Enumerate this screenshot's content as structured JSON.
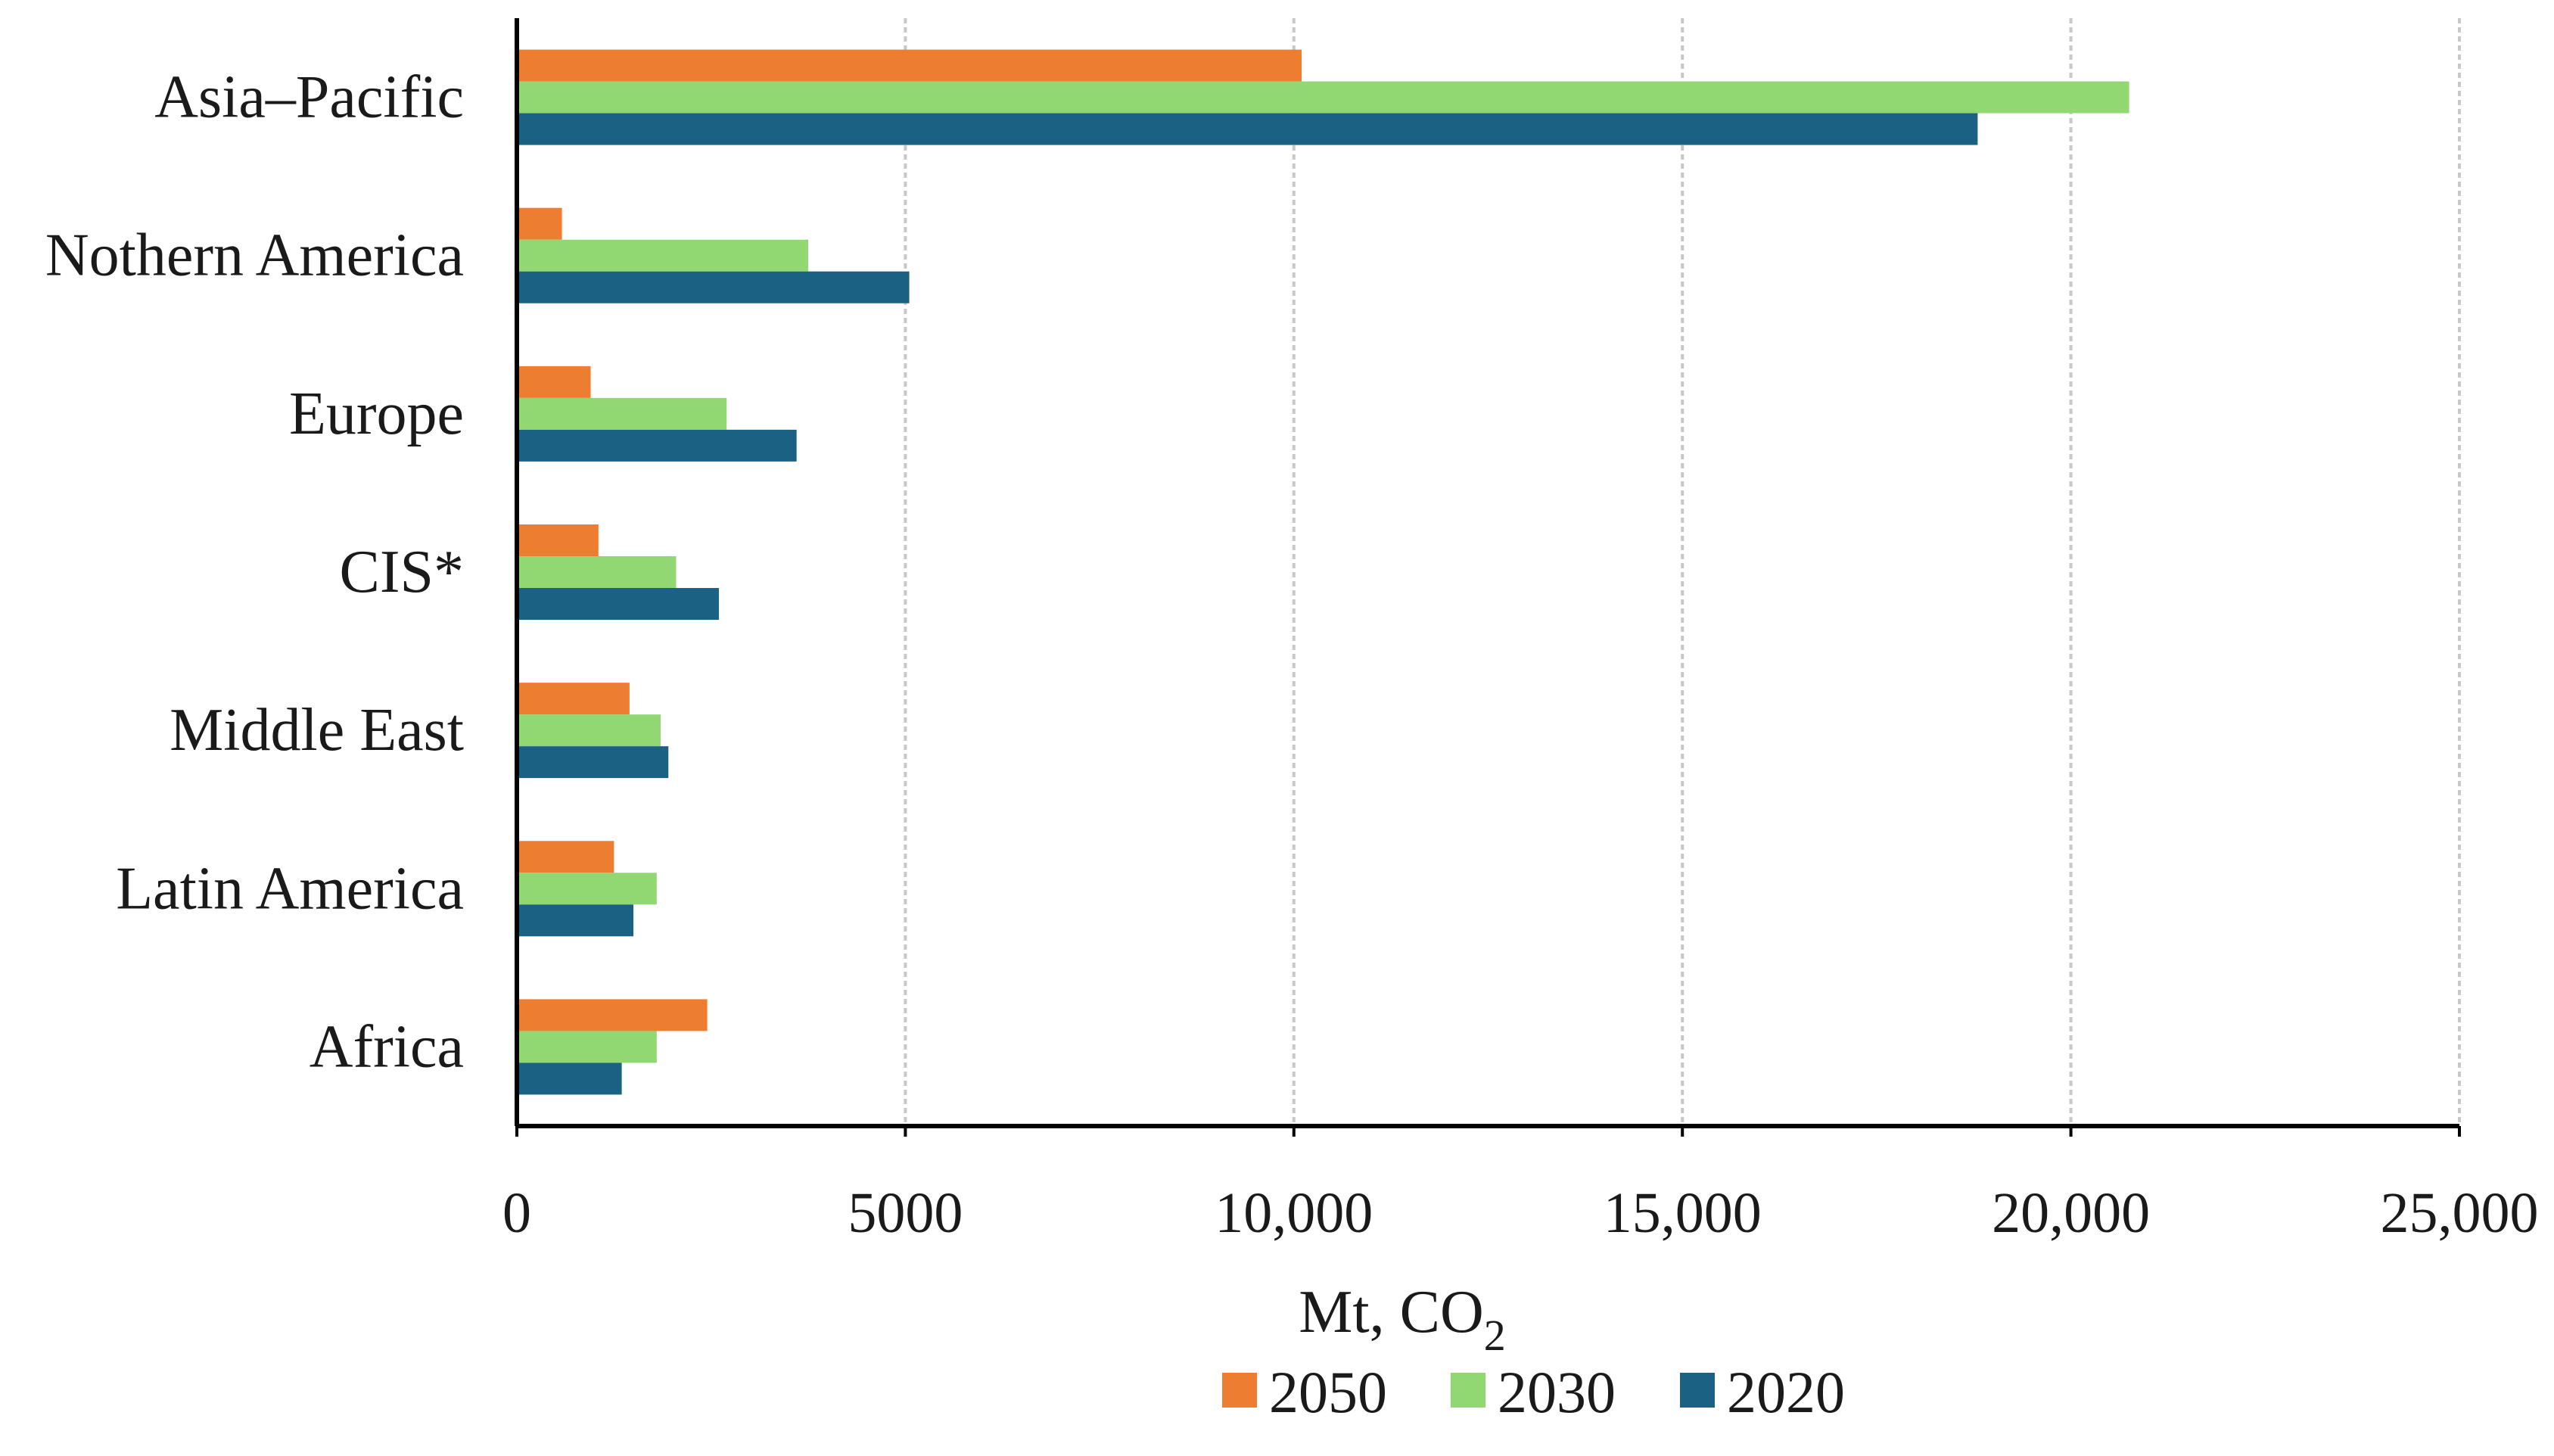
{
  "chart_data": {
    "type": "bar",
    "orientation": "horizontal",
    "categories": [
      "Asia–Pacific",
      "Nothern America",
      "Europe",
      "CIS*",
      "Middle East",
      "Latin America",
      "Africa"
    ],
    "series": [
      {
        "name": "2050",
        "color": "#ED7D31",
        "values": [
          10100,
          580,
          950,
          1050,
          1450,
          1250,
          2450
        ]
      },
      {
        "name": "2030",
        "color": "#92D872",
        "values": [
          20750,
          3750,
          2700,
          2050,
          1850,
          1800,
          1800
        ]
      },
      {
        "name": "2020",
        "color": "#1B6183",
        "values": [
          18800,
          5050,
          3600,
          2600,
          1950,
          1500,
          1350
        ]
      }
    ],
    "xlim": [
      0,
      25000
    ],
    "ticks": [
      0,
      5000,
      10000,
      15000,
      20000,
      25000
    ],
    "tick_labels": [
      "0",
      "5000",
      "10,000",
      "15,000",
      "20,000",
      "25,000"
    ],
    "xlabel_main": "Mt, CO",
    "xlabel_sub": "2",
    "ylabel": "",
    "title": "",
    "grid": "vertical dashed",
    "legend_position": "bottom",
    "legend_order": [
      "2050",
      "2030",
      "2020"
    ]
  }
}
